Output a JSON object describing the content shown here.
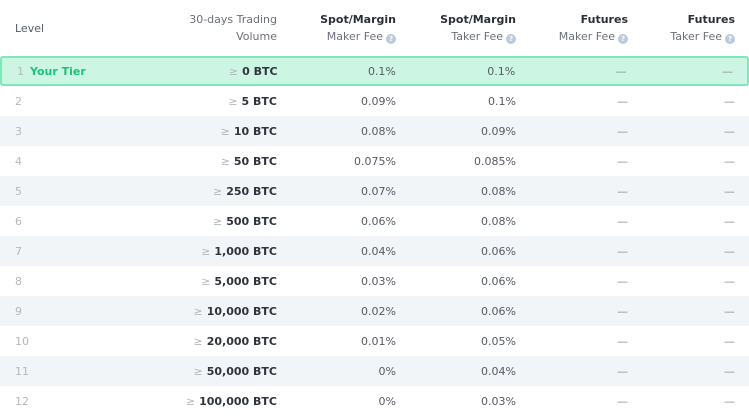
{
  "header": {
    "level": "Level",
    "volume_line1": "30-days Trading",
    "volume_line2": "Volume",
    "spot_maker_title": "Spot/Margin",
    "spot_maker_sub": "Maker Fee",
    "spot_taker_title": "Spot/Margin",
    "spot_taker_sub": "Taker Fee",
    "futures_maker_title": "Futures",
    "futures_maker_sub": "Maker Fee",
    "futures_taker_title": "Futures",
    "futures_taker_sub": "Taker Fee",
    "help_glyph": "?"
  },
  "ge_symbol": "≥",
  "rows": [
    {
      "level": "1",
      "tier_label": "Your Tier",
      "volume": "0 BTC",
      "spot_maker": "0.1%",
      "spot_taker": "0.1%",
      "futures_maker": "—",
      "futures_taker": "—"
    },
    {
      "level": "2",
      "volume": "5 BTC",
      "spot_maker": "0.09%",
      "spot_taker": "0.1%",
      "futures_maker": "—",
      "futures_taker": "—"
    },
    {
      "level": "3",
      "volume": "10 BTC",
      "spot_maker": "0.08%",
      "spot_taker": "0.09%",
      "futures_maker": "—",
      "futures_taker": "—"
    },
    {
      "level": "4",
      "volume": "50 BTC",
      "spot_maker": "0.075%",
      "spot_taker": "0.085%",
      "futures_maker": "—",
      "futures_taker": "—"
    },
    {
      "level": "5",
      "volume": "250 BTC",
      "spot_maker": "0.07%",
      "spot_taker": "0.08%",
      "futures_maker": "—",
      "futures_taker": "—"
    },
    {
      "level": "6",
      "volume": "500 BTC",
      "spot_maker": "0.06%",
      "spot_taker": "0.08%",
      "futures_maker": "—",
      "futures_taker": "—"
    },
    {
      "level": "7",
      "volume": "1,000 BTC",
      "spot_maker": "0.04%",
      "spot_taker": "0.06%",
      "futures_maker": "—",
      "futures_taker": "—"
    },
    {
      "level": "8",
      "volume": "5,000 BTC",
      "spot_maker": "0.03%",
      "spot_taker": "0.06%",
      "futures_maker": "—",
      "futures_taker": "—"
    },
    {
      "level": "9",
      "volume": "10,000 BTC",
      "spot_maker": "0.02%",
      "spot_taker": "0.06%",
      "futures_maker": "—",
      "futures_taker": "—"
    },
    {
      "level": "10",
      "volume": "20,000 BTC",
      "spot_maker": "0.01%",
      "spot_taker": "0.05%",
      "futures_maker": "—",
      "futures_taker": "—"
    },
    {
      "level": "11",
      "volume": "50,000 BTC",
      "spot_maker": "0%",
      "spot_taker": "0.04%",
      "futures_maker": "—",
      "futures_taker": "—"
    },
    {
      "level": "12",
      "volume": "100,000 BTC",
      "spot_maker": "0%",
      "spot_taker": "0.03%",
      "futures_maker": "—",
      "futures_taker": "—"
    }
  ],
  "colors": {
    "current_tier_bg": "#cdf5e3",
    "current_tier_border": "#7ee8b8",
    "current_tier_text": "#18c47a",
    "alt_row_bg": "#f2f5f8"
  }
}
